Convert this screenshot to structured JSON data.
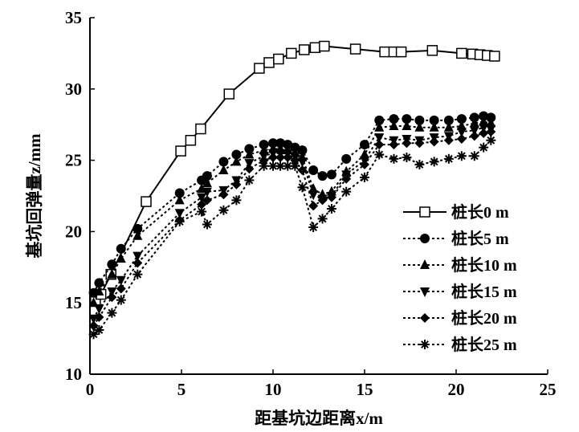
{
  "chart_data": {
    "type": "line",
    "title": "",
    "xlabel": "距基坑边距离x/m",
    "ylabel": "基坑回弹量z/mm",
    "xlim": [
      0,
      25
    ],
    "ylim": [
      10,
      35
    ],
    "xticks": [
      "0",
      "5",
      "10",
      "15",
      "20",
      "25"
    ],
    "yticks": [
      "10",
      "15",
      "20",
      "25",
      "30",
      "35"
    ],
    "grid": false,
    "legend_position": "right",
    "series": [
      {
        "name": "桩长0 m",
        "marker": "square-open",
        "line": "solid",
        "x": [
          0.3,
          0.6,
          1.15,
          3.07,
          4.96,
          5.5,
          6.05,
          7.6,
          9.25,
          9.78,
          10.3,
          11.0,
          11.7,
          12.3,
          12.8,
          14.5,
          16.1,
          16.6,
          17.0,
          18.7,
          20.3,
          20.9,
          21.3,
          21.7,
          22.1
        ],
        "y": [
          15.2,
          15.6,
          17.0,
          22.1,
          25.65,
          26.4,
          27.2,
          29.65,
          31.45,
          31.85,
          32.1,
          32.5,
          32.75,
          32.9,
          33.0,
          32.8,
          32.6,
          32.6,
          32.6,
          32.7,
          32.5,
          32.45,
          32.4,
          32.35,
          32.3
        ]
      },
      {
        "name": "桩长5 m",
        "marker": "circle",
        "line": "dotted",
        "x": [
          0.2,
          0.5,
          1.2,
          1.7,
          2.6,
          4.9,
          6.1,
          6.4,
          7.3,
          8.0,
          8.7,
          9.5,
          10.0,
          10.4,
          10.8,
          11.2,
          11.6,
          12.2,
          12.7,
          13.2,
          14.0,
          15.0,
          15.8,
          16.6,
          17.3,
          18.0,
          18.8,
          19.6,
          20.3,
          21.0,
          21.5,
          21.9
        ],
        "y": [
          15.7,
          16.4,
          17.7,
          18.8,
          20.2,
          22.7,
          23.6,
          23.9,
          24.9,
          25.4,
          25.8,
          26.1,
          26.2,
          26.2,
          26.1,
          25.9,
          25.7,
          24.3,
          23.9,
          24.0,
          25.1,
          26.1,
          27.8,
          27.9,
          27.9,
          27.8,
          27.8,
          27.8,
          27.9,
          28.0,
          28.1,
          28.0
        ]
      },
      {
        "name": "桩长10 m",
        "marker": "triangle-up",
        "line": "dotted",
        "x": [
          0.2,
          0.5,
          1.2,
          1.7,
          2.6,
          4.9,
          6.1,
          6.4,
          7.3,
          8.0,
          8.7,
          9.5,
          10.0,
          10.4,
          10.8,
          11.2,
          11.6,
          12.2,
          12.7,
          13.2,
          14.0,
          15.0,
          15.8,
          16.6,
          17.3,
          18.0,
          18.8,
          19.6,
          20.3,
          21.0,
          21.5,
          21.9
        ],
        "y": [
          15.0,
          15.8,
          17.0,
          18.1,
          19.7,
          22.2,
          23.0,
          23.4,
          24.3,
          24.9,
          25.4,
          25.7,
          25.8,
          25.8,
          25.7,
          25.5,
          25.2,
          23.0,
          22.6,
          22.8,
          24.2,
          25.4,
          27.3,
          27.4,
          27.4,
          27.3,
          27.3,
          27.3,
          27.4,
          27.6,
          27.7,
          27.6
        ]
      },
      {
        "name": "桩长15 m",
        "marker": "triangle-down",
        "line": "dotted",
        "x": [
          0.2,
          0.5,
          1.2,
          1.7,
          2.6,
          4.9,
          6.1,
          6.4,
          7.3,
          8.0,
          8.7,
          9.5,
          10.0,
          10.4,
          10.8,
          11.2,
          11.6,
          12.2,
          12.7,
          13.2,
          14.0,
          15.0,
          15.8,
          16.6,
          17.3,
          18.0,
          18.8,
          19.6,
          20.3,
          21.0,
          21.5,
          21.9
        ],
        "y": [
          13.9,
          14.6,
          15.8,
          16.6,
          18.3,
          21.3,
          22.4,
          22.8,
          22.9,
          23.6,
          24.8,
          25.3,
          25.5,
          25.5,
          25.5,
          25.3,
          24.9,
          22.6,
          22.3,
          22.5,
          24.0,
          25.0,
          26.6,
          26.4,
          26.5,
          26.4,
          26.6,
          26.7,
          27.0,
          27.1,
          27.3,
          27.2
        ]
      },
      {
        "name": "桩长20 m",
        "marker": "diamond",
        "line": "dotted",
        "x": [
          0.2,
          0.5,
          1.2,
          1.7,
          2.6,
          4.9,
          6.1,
          6.4,
          7.3,
          8.0,
          8.7,
          9.5,
          10.0,
          10.4,
          10.8,
          11.2,
          11.6,
          12.2,
          12.7,
          13.2,
          14.0,
          15.0,
          15.8,
          16.6,
          17.3,
          18.0,
          18.8,
          19.6,
          20.3,
          21.0,
          21.5,
          21.9
        ],
        "y": [
          13.4,
          14.0,
          15.4,
          16.0,
          17.8,
          20.8,
          21.9,
          22.2,
          22.6,
          23.3,
          24.4,
          25.0,
          25.2,
          25.2,
          25.2,
          25.0,
          24.3,
          21.8,
          22.2,
          22.4,
          23.7,
          24.7,
          26.1,
          26.1,
          26.2,
          26.2,
          26.3,
          26.4,
          26.5,
          26.7,
          26.9,
          27.0
        ]
      },
      {
        "name": "桩长25 m",
        "marker": "asterisk",
        "line": "dotted",
        "x": [
          0.2,
          0.5,
          1.2,
          1.7,
          2.6,
          4.9,
          6.1,
          6.4,
          7.3,
          8.0,
          8.7,
          9.5,
          10.0,
          10.4,
          10.8,
          11.2,
          11.6,
          12.2,
          12.7,
          13.2,
          14.0,
          15.0,
          15.8,
          16.6,
          17.3,
          18.0,
          18.8,
          19.6,
          20.3,
          21.0,
          21.5,
          21.9
        ],
        "y": [
          12.8,
          13.1,
          14.3,
          15.2,
          17.0,
          20.7,
          21.4,
          20.5,
          21.5,
          22.2,
          23.6,
          24.6,
          24.6,
          24.6,
          24.6,
          24.6,
          23.1,
          20.3,
          20.9,
          21.6,
          22.8,
          23.8,
          25.4,
          25.1,
          25.2,
          24.7,
          24.9,
          25.1,
          25.3,
          25.3,
          25.9,
          26.4
        ]
      }
    ]
  }
}
